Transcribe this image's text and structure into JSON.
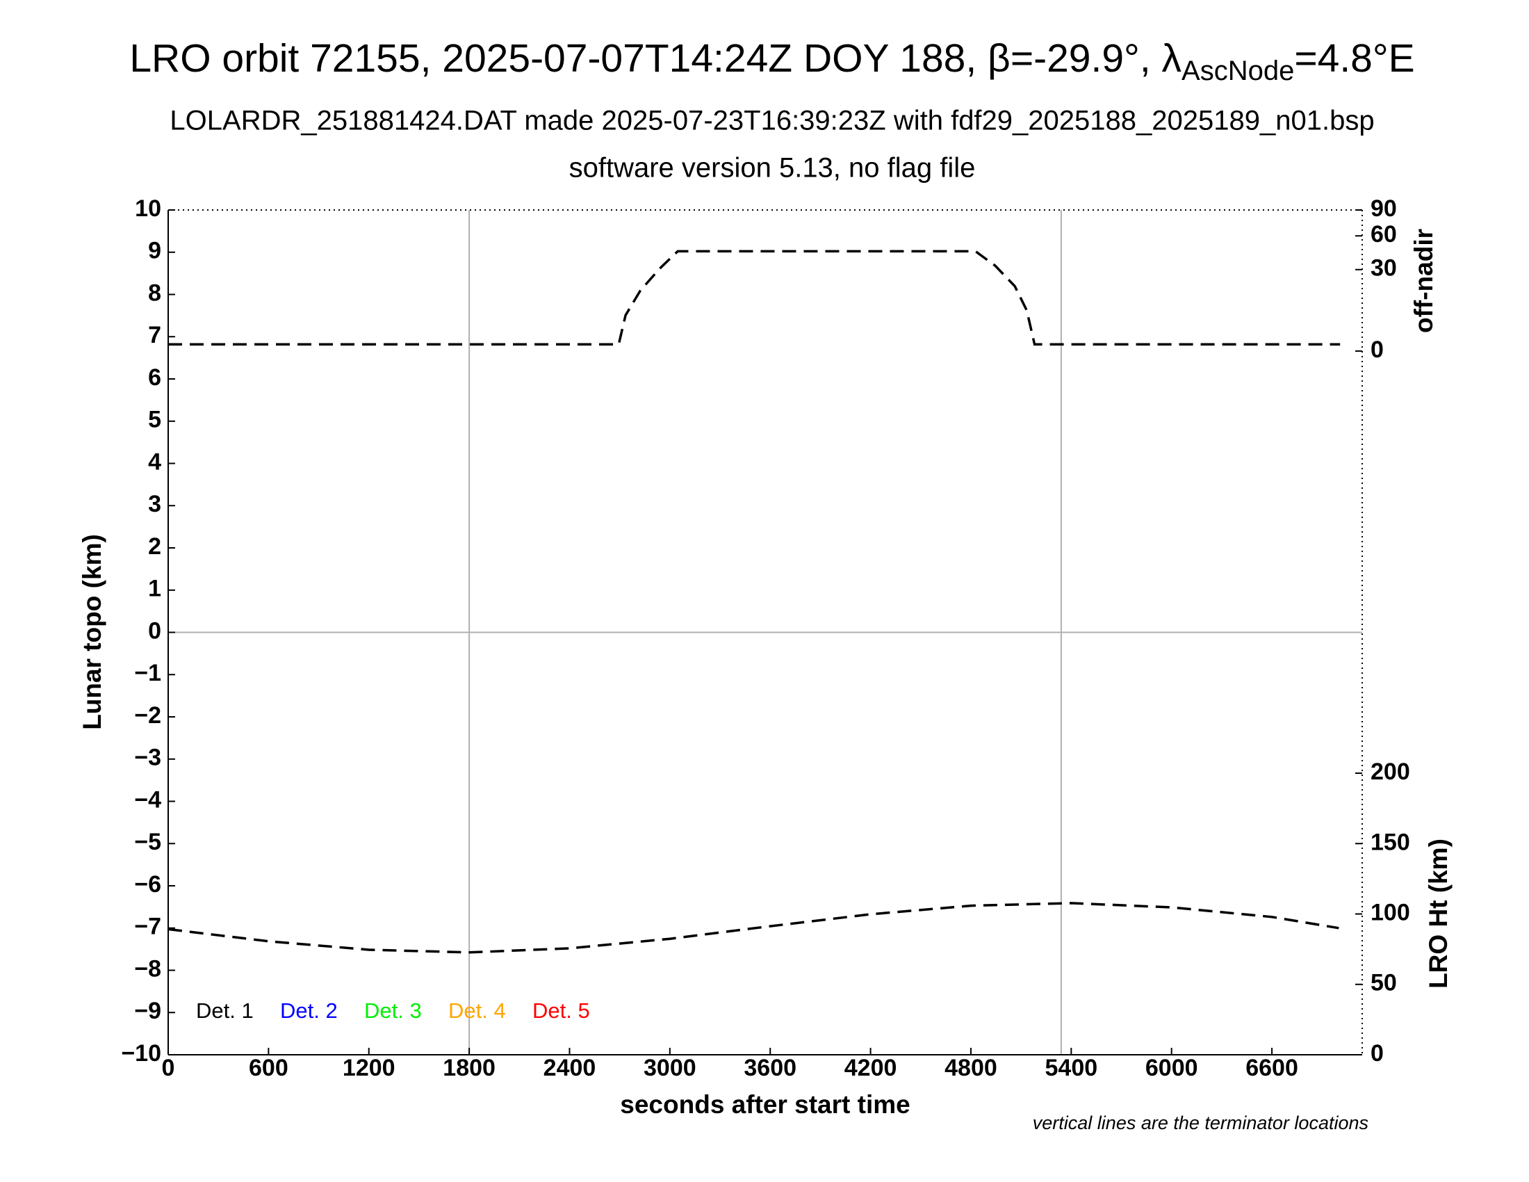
{
  "chart_data": {
    "type": "line",
    "title": {
      "main": "LRO orbit 72155, 2025-07-07T14:24Z DOY 188, β=-29.9°, λ",
      "sub": "AscNode",
      "end": "=4.8°E"
    },
    "subtitle": [
      "LOLARDR_251881424.DAT made 2025-07-23T16:39:23Z with fdf29_2025188_2025189_n01.bsp",
      "software version 5.13, no flag file"
    ],
    "xlabel": "seconds after start time",
    "ylabel": "Lunar topo (km)",
    "y2label": "off-nadir",
    "y3label": "LRO Ht (km)",
    "note": "vertical lines are the terminator locations",
    "xlim": [
      0,
      7140
    ],
    "xticks": [
      0,
      600,
      1200,
      1800,
      2400,
      3000,
      3600,
      4200,
      4800,
      5400,
      6000,
      6600
    ],
    "ylim": [
      -10,
      10
    ],
    "yticks": [
      {
        "value": -10,
        "label": "−10"
      },
      {
        "value": -9,
        "label": "−9"
      },
      {
        "value": -8,
        "label": "−8"
      },
      {
        "value": -7,
        "label": "−7"
      },
      {
        "value": -6,
        "label": "−6"
      },
      {
        "value": -5,
        "label": "−5"
      },
      {
        "value": -4,
        "label": "−4"
      },
      {
        "value": -3,
        "label": "−3"
      },
      {
        "value": -2,
        "label": "−2"
      },
      {
        "value": -1,
        "label": "−1"
      },
      0,
      1,
      2,
      3,
      4,
      5,
      6,
      7,
      8,
      9,
      10
    ],
    "y2lim": [
      0,
      90
    ],
    "y2ticks": [
      0,
      30,
      60,
      90
    ],
    "y2scale": "sqrt",
    "y3lim": [
      0,
      200
    ],
    "y3ticks": [
      0,
      50,
      100,
      150,
      200
    ],
    "vlines": [
      1800,
      5340
    ],
    "hline": 0,
    "grid_color": "#b0b0b0",
    "series": [
      {
        "axis": "y2",
        "color": "#000000",
        "dashed": true,
        "x": [
          0,
          2694,
          2735,
          2823,
          2941,
          3047,
          4827,
          4945,
          5063,
          5134,
          5181,
          7008
        ],
        "values": [
          0.2,
          0.2,
          5.8,
          16.5,
          31,
          45,
          45,
          33,
          19,
          7.5,
          0.2,
          0.2
        ]
      },
      {
        "axis": "y3",
        "color": "#000000",
        "dashed": true,
        "x": [
          0,
          600,
          1200,
          1800,
          2400,
          3000,
          3600,
          4200,
          4800,
          5400,
          6000,
          6600,
          7000
        ],
        "values": [
          89.2,
          80.6,
          74.6,
          72.7,
          75.6,
          82.4,
          91.3,
          99.8,
          105.9,
          107.7,
          104.7,
          97.9,
          90
        ]
      }
    ],
    "legend": [
      {
        "name": "Det. 1",
        "color": "#000000"
      },
      {
        "name": "Det. 2",
        "color": "#0000ff"
      },
      {
        "name": "Det. 3",
        "color": "#00ee00"
      },
      {
        "name": "Det. 4",
        "color": "#ffa500"
      },
      {
        "name": "Det. 5",
        "color": "#ff0000"
      }
    ]
  }
}
